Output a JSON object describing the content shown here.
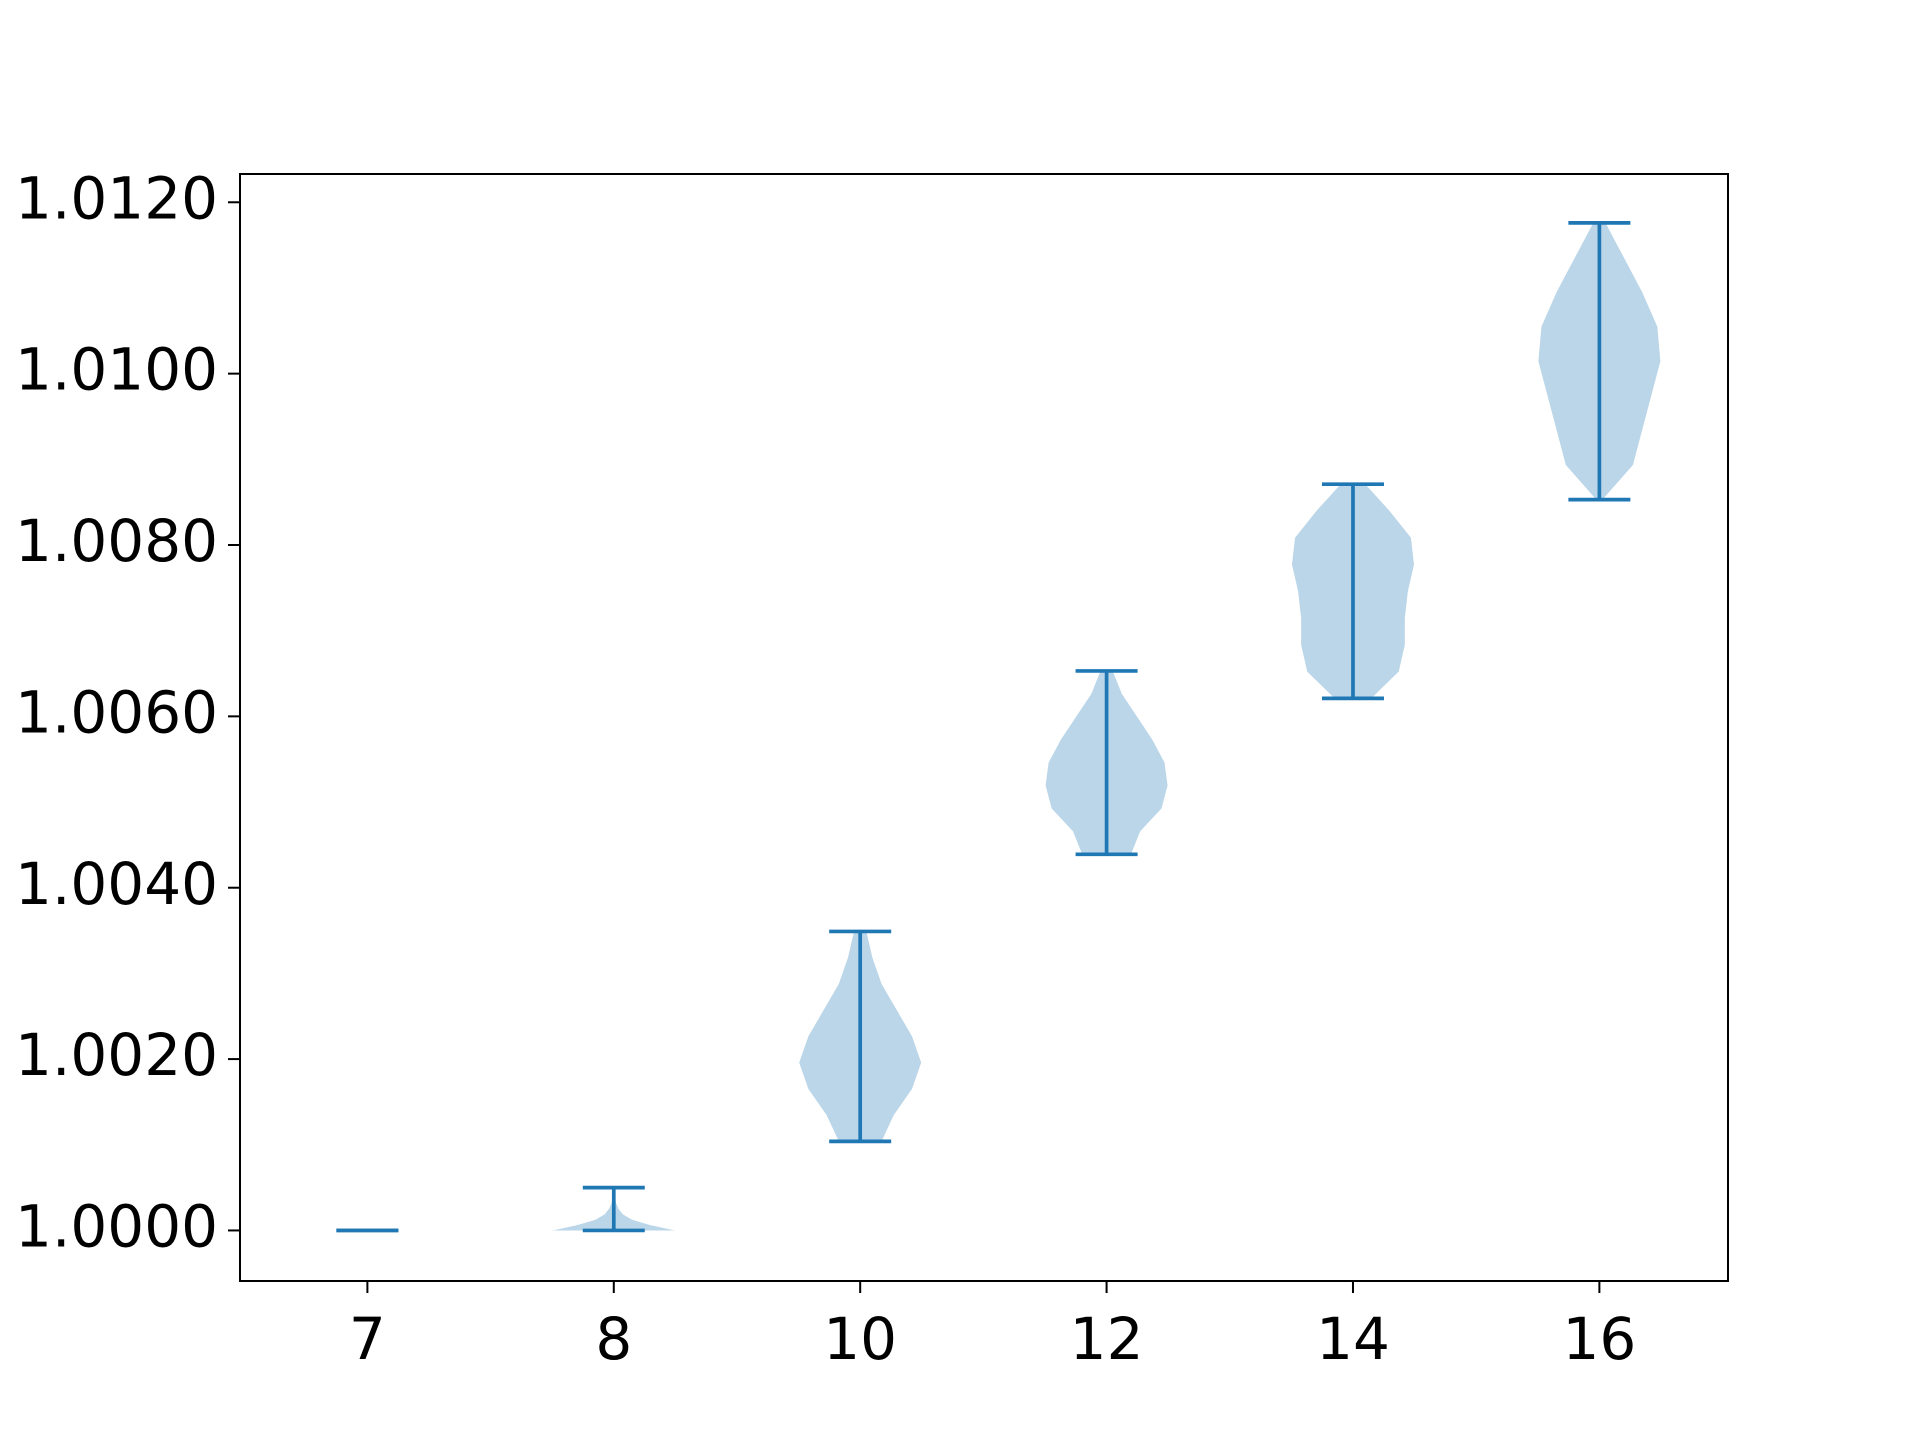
{
  "chart_data": {
    "type": "violin",
    "categories": [
      "7",
      "8",
      "10",
      "12",
      "14",
      "16"
    ],
    "series": [
      {
        "color": "#1f77b4",
        "min": [
          1.0,
          1.0,
          1.00104,
          1.00439,
          1.00621,
          1.00853
        ],
        "max": [
          1.0,
          1.0005,
          1.00349,
          1.00653,
          1.00871,
          1.01176
        ],
        "profile": [
          [],
          [
            1,
            0.6,
            0.3,
            0.15,
            0.08,
            0.04,
            0.02,
            0.01,
            0
          ],
          [
            0.35,
            0.55,
            0.85,
            1.0,
            0.85,
            0.6,
            0.35,
            0.2,
            0.1
          ],
          [
            0.4,
            0.55,
            0.9,
            1.0,
            0.95,
            0.75,
            0.5,
            0.25,
            0.1
          ],
          [
            0.3,
            0.75,
            0.85,
            0.85,
            0.9,
            1.0,
            0.95,
            0.6,
            0.2
          ],
          [
            0.05,
            0.55,
            0.7,
            0.85,
            1.0,
            0.95,
            0.7,
            0.4,
            0.1
          ]
        ]
      }
    ],
    "ylim": [
      0.99941,
      1.01233
    ],
    "yticks": [
      {
        "value": 1.0,
        "label": "1.0000"
      },
      {
        "value": 1.002,
        "label": "1.0020"
      },
      {
        "value": 1.004,
        "label": "1.0040"
      },
      {
        "value": 1.006,
        "label": "1.0060"
      },
      {
        "value": 1.008,
        "label": "1.0080"
      },
      {
        "value": 1.01,
        "label": "1.0100"
      },
      {
        "value": 1.012,
        "label": "1.0120"
      }
    ]
  }
}
